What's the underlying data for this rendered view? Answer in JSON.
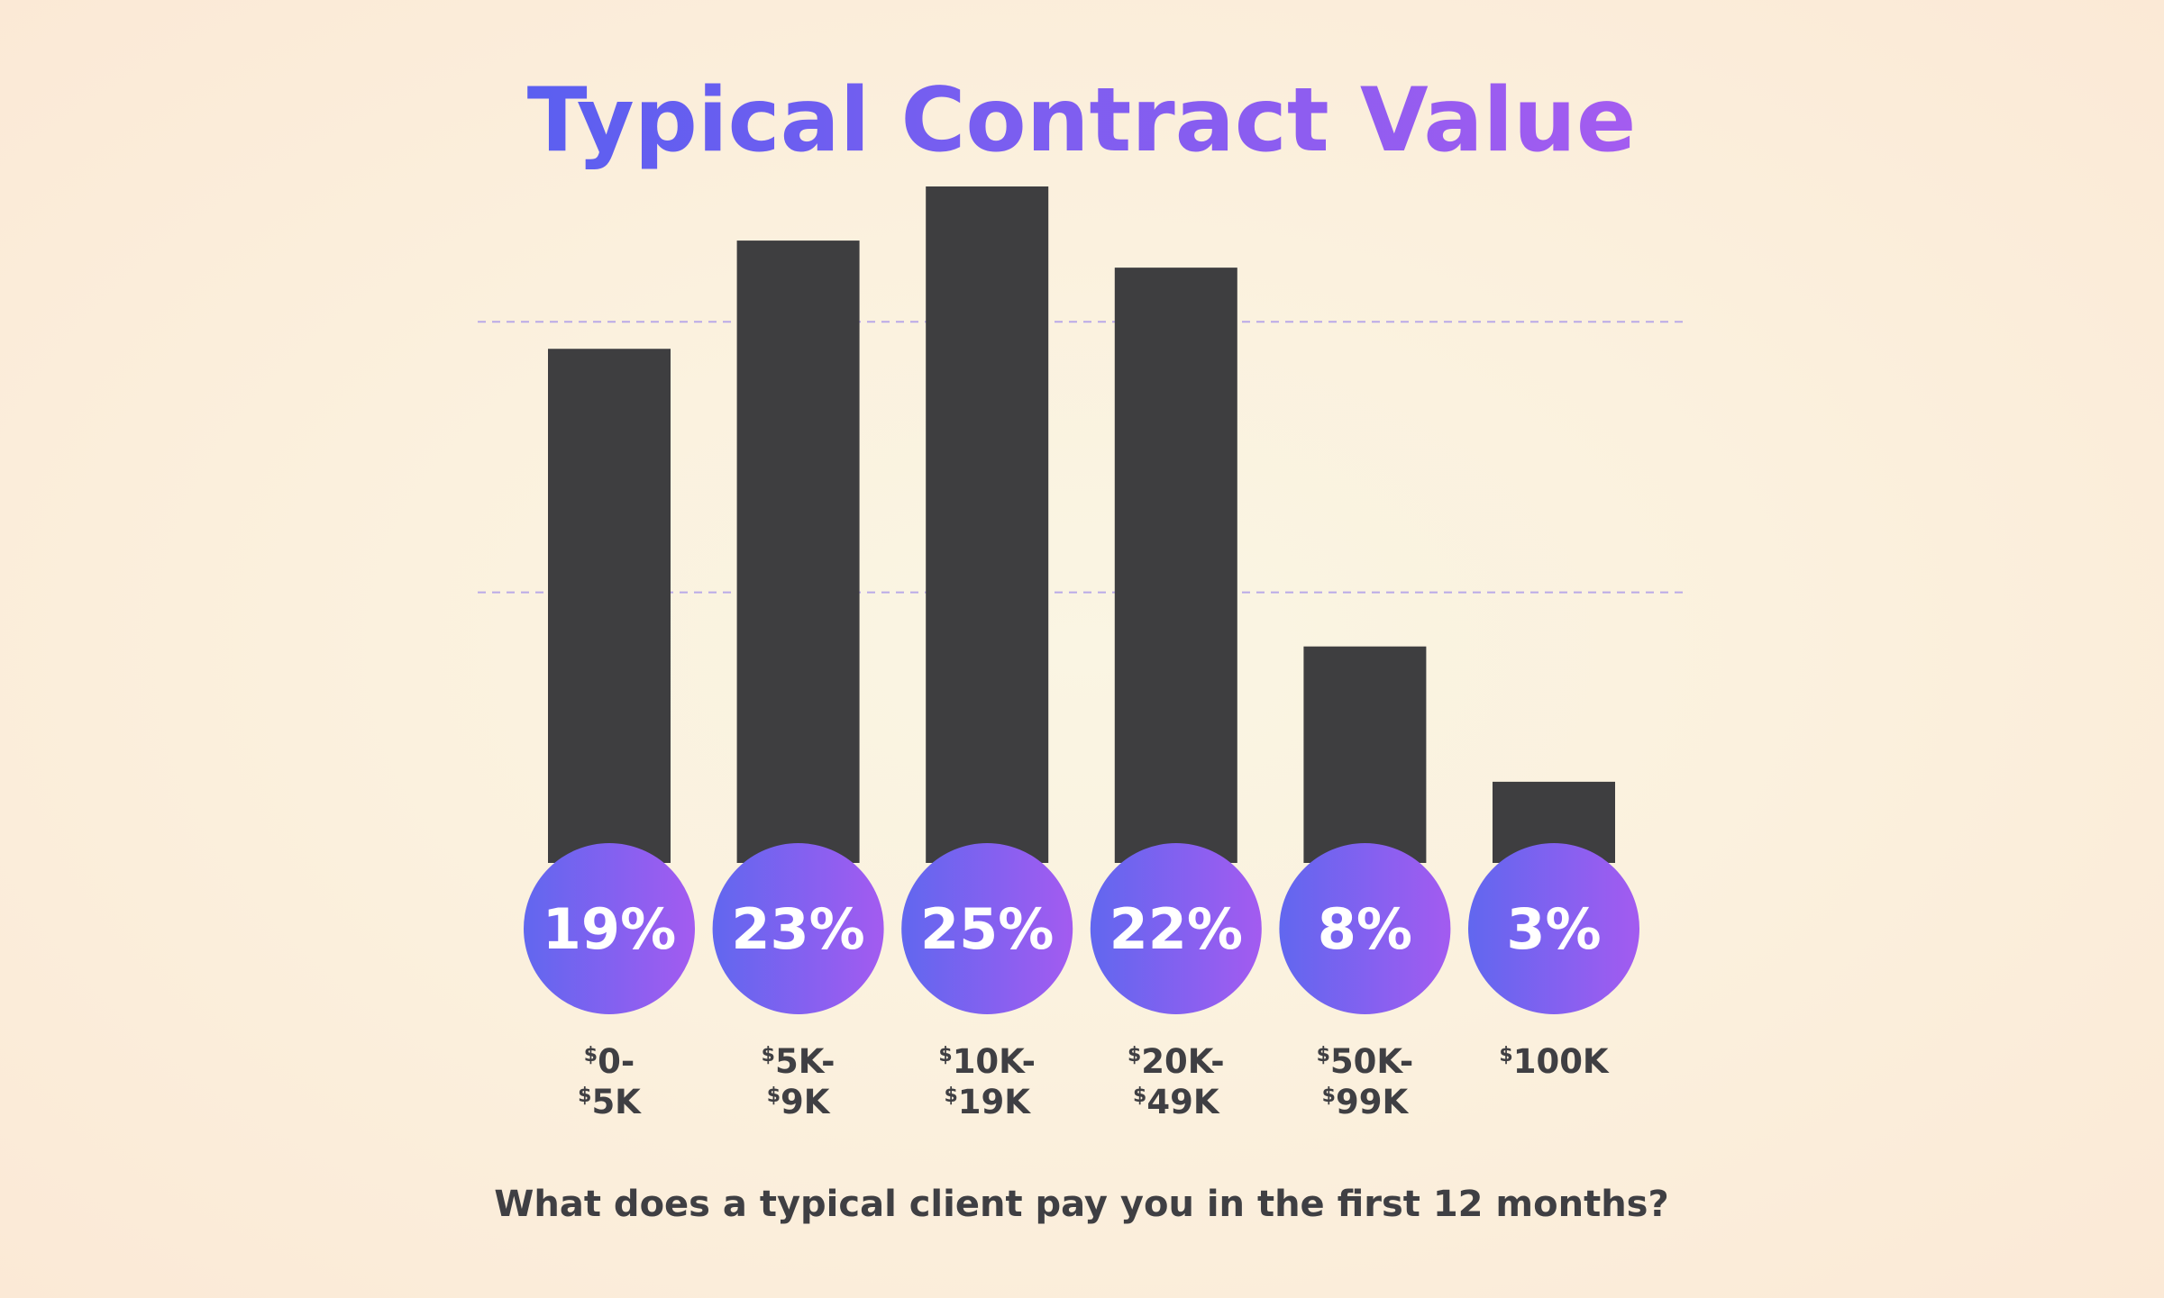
{
  "chart_data": {
    "type": "bar",
    "title": "Typical Contract Value",
    "subtitle": "What does a typical client pay you in the first 12 months?",
    "categories": [
      {
        "currency": "$",
        "line1": "0-",
        "line2": "5K"
      },
      {
        "currency": "$",
        "line1": "5K-",
        "line2": "9K"
      },
      {
        "currency": "$",
        "line1": "10K-",
        "line2": "19K"
      },
      {
        "currency": "$",
        "line1": "20K-",
        "line2": "49K"
      },
      {
        "currency": "$",
        "line1": "50K-",
        "line2": "99K"
      },
      {
        "currency": "$",
        "line1": "100K",
        "line2": ""
      }
    ],
    "values": [
      19,
      23,
      25,
      22,
      8,
      3
    ],
    "value_labels": [
      "19%",
      "23%",
      "25%",
      "22%",
      "8%",
      "3%"
    ],
    "unit": "%",
    "ylim": [
      0,
      27
    ],
    "gridlines": [
      10,
      20
    ],
    "grid": true,
    "legend": "none",
    "colors": {
      "bar": "#3e3e40",
      "badge_start": "#6167ef",
      "badge_end": "#a35bf0",
      "title_start": "#5b5ff0",
      "title_end": "#a45cf0",
      "grid": "#b9a9e8",
      "text": "#3f3f43",
      "badge_text": "#ffffff"
    }
  }
}
